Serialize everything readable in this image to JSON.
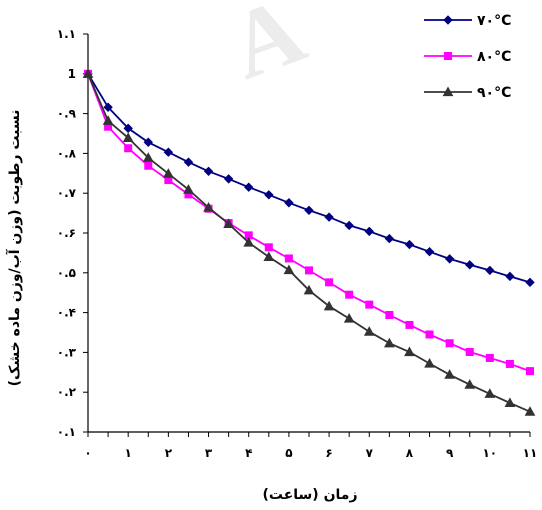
{
  "chart_data": {
    "type": "line",
    "title": "",
    "xlabel": "زمان (ساعت)",
    "ylabel": "نسبت رطوبت (وزن آب/وزن ماده خشک)",
    "xlim": [
      0,
      11
    ],
    "ylim": [
      0.1,
      1.1
    ],
    "x_ticks": [
      "۰",
      "۱",
      "۲",
      "۳",
      "۴",
      "۵",
      "۶",
      "۷",
      "۸",
      "۹",
      "۱۰",
      "۱۱"
    ],
    "y_ticks": [
      {
        "value": 0.1,
        "label": "۰.۱"
      },
      {
        "value": 0.2,
        "label": "۰.۲"
      },
      {
        "value": 0.3,
        "label": "۰.۳"
      },
      {
        "value": 0.4,
        "label": "۰.۴"
      },
      {
        "value": 0.5,
        "label": "۰.۵"
      },
      {
        "value": 0.6,
        "label": "۰.۶"
      },
      {
        "value": 0.7,
        "label": "۰.۷"
      },
      {
        "value": 0.8,
        "label": "۰.۸"
      },
      {
        "value": 0.9,
        "label": "۰.۹"
      },
      {
        "value": 1.0,
        "label": "1"
      },
      {
        "value": 1.1,
        "label": "۱.۱"
      }
    ],
    "grid": false,
    "legend_position": "top-right",
    "watermark": "A",
    "series": [
      {
        "name": "۷۰°C",
        "color": "#000080",
        "marker": "diamond",
        "x": [
          0,
          0.5,
          1,
          1.5,
          2,
          2.5,
          3,
          3.5,
          4,
          4.5,
          5,
          5.5,
          6,
          6.5,
          7,
          7.5,
          8,
          8.5,
          9,
          9.5,
          10,
          10.5,
          11
        ],
        "y": [
          1.0,
          0.916,
          0.863,
          0.828,
          0.803,
          0.778,
          0.755,
          0.736,
          0.715,
          0.696,
          0.676,
          0.657,
          0.64,
          0.619,
          0.604,
          0.586,
          0.571,
          0.553,
          0.535,
          0.52,
          0.506,
          0.491,
          0.476
        ]
      },
      {
        "name": "۸۰°C",
        "color": "#ff00ff",
        "marker": "square",
        "x": [
          0,
          0.5,
          1,
          1.5,
          2,
          2.5,
          3,
          3.5,
          4,
          4.5,
          5,
          5.5,
          6,
          6.5,
          7,
          7.5,
          8,
          8.5,
          9,
          9.5,
          10,
          10.5,
          11
        ],
        "y": [
          1.0,
          0.867,
          0.813,
          0.769,
          0.733,
          0.697,
          0.661,
          0.625,
          0.594,
          0.564,
          0.536,
          0.506,
          0.476,
          0.445,
          0.42,
          0.394,
          0.369,
          0.345,
          0.323,
          0.301,
          0.286,
          0.271,
          0.253
        ]
      },
      {
        "name": "۹۰°C",
        "color": "#333333",
        "marker": "triangle",
        "x": [
          0,
          0.5,
          1,
          1.5,
          2,
          2.5,
          3,
          3.5,
          4,
          4.5,
          5,
          5.5,
          6,
          6.5,
          7,
          7.5,
          8,
          8.5,
          9,
          9.5,
          10,
          10.5,
          11
        ],
        "y": [
          1.0,
          0.882,
          0.839,
          0.789,
          0.749,
          0.709,
          0.664,
          0.623,
          0.576,
          0.54,
          0.507,
          0.456,
          0.416,
          0.385,
          0.352,
          0.323,
          0.301,
          0.272,
          0.244,
          0.219,
          0.196,
          0.173,
          0.151
        ]
      }
    ]
  }
}
